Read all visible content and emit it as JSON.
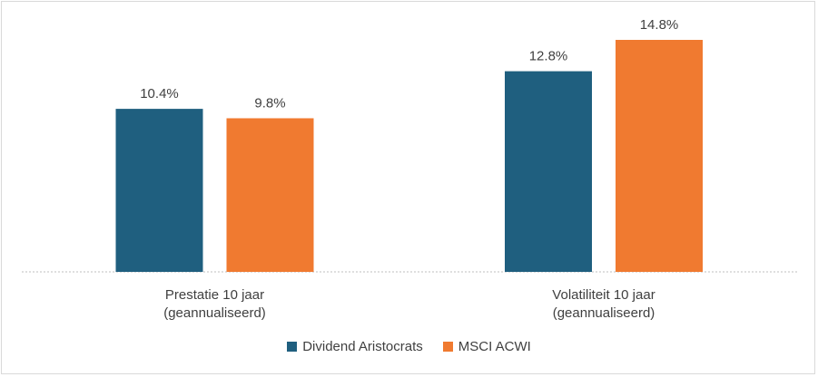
{
  "chart_data": {
    "type": "bar",
    "categories": [
      [
        "Prestatie 10 jaar",
        "(geannualiseerd)"
      ],
      [
        "Volatiliteit  10 jaar",
        "(geannualiseerd)"
      ]
    ],
    "series": [
      {
        "name": "Dividend Aristocrats",
        "color": "#1f5f7f",
        "values": [
          10.4,
          12.8
        ],
        "labels": [
          "10.4%",
          "12.8%"
        ]
      },
      {
        "name": "MSCI ACWI",
        "color": "#f07a30",
        "values": [
          9.8,
          14.8
        ],
        "labels": [
          "9.8%",
          "14.8%"
        ]
      }
    ],
    "ylim": [
      0,
      16
    ],
    "grid": false,
    "legend_position": "bottom"
  }
}
